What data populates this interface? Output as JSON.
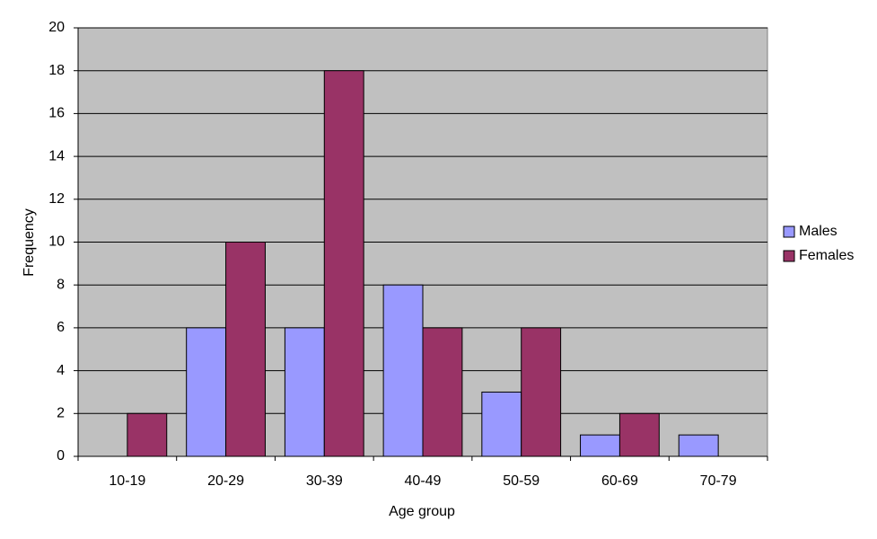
{
  "chart_data": {
    "type": "bar",
    "categories": [
      "10-19",
      "20-29",
      "30-39",
      "40-49",
      "50-59",
      "60-69",
      "70-79"
    ],
    "series": [
      {
        "name": "Males",
        "color": "#9999ff",
        "values": [
          0,
          6,
          6,
          8,
          3,
          1,
          1
        ]
      },
      {
        "name": "Females",
        "color": "#993366",
        "values": [
          2,
          10,
          18,
          6,
          6,
          2,
          0
        ]
      }
    ],
    "x_label": "Age group",
    "y_label": "Frequency",
    "ylim": [
      0,
      20
    ],
    "yticks": [
      0,
      2,
      4,
      6,
      8,
      10,
      12,
      14,
      16,
      18,
      20
    ],
    "grid": true,
    "legend": "right"
  }
}
